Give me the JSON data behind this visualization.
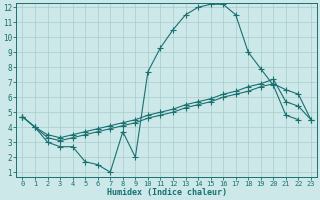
{
  "background_color": "#cce8e8",
  "line_color": "#1a7070",
  "grid_color": "#a8cccc",
  "xlabel": "Humidex (Indice chaleur)",
  "xlim": [
    -0.5,
    23.5
  ],
  "ylim": [
    0.7,
    12.3
  ],
  "yticks": [
    1,
    2,
    3,
    4,
    5,
    6,
    7,
    8,
    9,
    10,
    11,
    12
  ],
  "xticks": [
    0,
    1,
    2,
    3,
    4,
    5,
    6,
    7,
    8,
    9,
    10,
    11,
    12,
    13,
    14,
    15,
    16,
    17,
    18,
    19,
    20,
    21,
    22,
    23
  ],
  "line1_x": [
    0,
    1,
    2,
    3,
    4,
    5,
    6,
    7,
    8,
    9,
    10,
    11,
    12,
    13,
    14,
    15,
    16,
    17,
    18,
    19,
    20,
    21,
    22
  ],
  "line1_y": [
    4.7,
    4.0,
    3.0,
    2.7,
    2.7,
    1.7,
    1.5,
    1.0,
    3.7,
    2.0,
    7.7,
    9.3,
    10.5,
    11.5,
    12.0,
    12.2,
    12.2,
    11.5,
    9.0,
    7.9,
    6.8,
    4.8,
    4.5
  ],
  "line2_x": [
    0,
    1,
    2,
    3,
    4,
    5,
    6,
    7,
    8,
    9,
    10,
    11,
    12,
    13,
    14,
    15,
    16,
    17,
    18,
    19,
    20,
    21,
    22,
    23
  ],
  "line2_y": [
    4.7,
    4.0,
    3.3,
    3.1,
    3.3,
    3.5,
    3.7,
    3.9,
    4.1,
    4.3,
    4.6,
    4.8,
    5.0,
    5.3,
    5.5,
    5.7,
    6.0,
    6.2,
    6.4,
    6.7,
    6.9,
    6.5,
    6.2,
    4.5
  ],
  "line3_x": [
    0,
    1,
    2,
    3,
    4,
    5,
    6,
    7,
    8,
    9,
    10,
    11,
    12,
    13,
    14,
    15,
    16,
    17,
    18,
    19,
    20,
    21,
    22,
    23
  ],
  "line3_y": [
    4.7,
    4.0,
    3.5,
    3.3,
    3.5,
    3.7,
    3.9,
    4.1,
    4.3,
    4.5,
    4.8,
    5.0,
    5.2,
    5.5,
    5.7,
    5.9,
    6.2,
    6.4,
    6.7,
    6.9,
    7.2,
    5.7,
    5.4,
    4.5
  ]
}
